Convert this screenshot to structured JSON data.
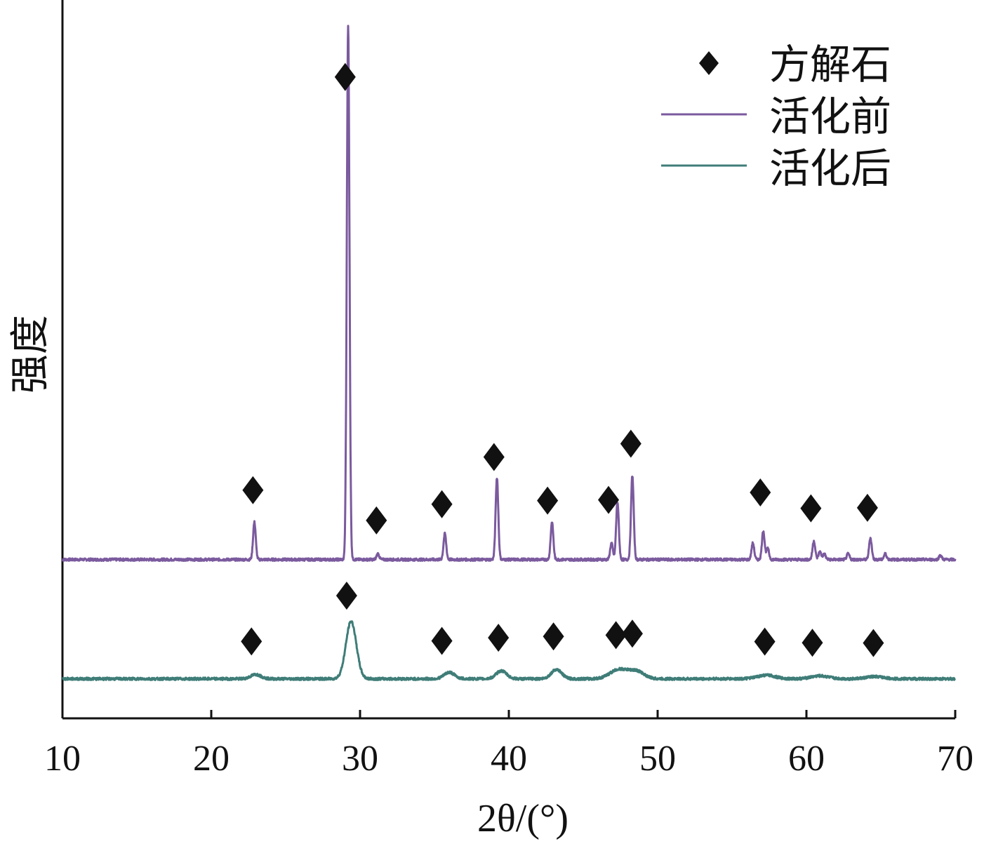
{
  "chart_data": {
    "type": "line",
    "xlabel": "2θ/(°)",
    "ylabel": "强度",
    "xlim": [
      10,
      70
    ],
    "ylim": [
      0,
      1
    ],
    "x_ticks": [
      10,
      20,
      30,
      40,
      50,
      60,
      70
    ],
    "y_ticks": [],
    "grid": false,
    "legend_position": "top-right",
    "marker_name": "方解石",
    "colors": {
      "before": "#7b5a9e",
      "after": "#3f7d78",
      "marker": "#111111"
    },
    "series": [
      {
        "name": "活化前",
        "baseline": 0.221,
        "peaks": [
          {
            "x": 22.9,
            "h": 0.052
          },
          {
            "x": 29.2,
            "h": 0.743
          },
          {
            "x": 31.2,
            "h": 0.008
          },
          {
            "x": 35.7,
            "h": 0.036
          },
          {
            "x": 39.2,
            "h": 0.114
          },
          {
            "x": 42.9,
            "h": 0.052
          },
          {
            "x": 46.9,
            "h": 0.023
          },
          {
            "x": 47.3,
            "h": 0.08
          },
          {
            "x": 48.3,
            "h": 0.117
          },
          {
            "x": 56.4,
            "h": 0.023
          },
          {
            "x": 57.1,
            "h": 0.04
          },
          {
            "x": 57.4,
            "h": 0.015
          },
          {
            "x": 60.5,
            "h": 0.026
          },
          {
            "x": 60.9,
            "h": 0.011
          },
          {
            "x": 61.2,
            "h": 0.008
          },
          {
            "x": 62.8,
            "h": 0.008
          },
          {
            "x": 64.3,
            "h": 0.03
          },
          {
            "x": 65.3,
            "h": 0.008
          },
          {
            "x": 69.0,
            "h": 0.006
          }
        ],
        "calcite_markers": [
          22.8,
          29.0,
          31.1,
          35.5,
          39.0,
          42.6,
          46.7,
          48.2,
          56.9,
          60.3,
          64.1
        ]
      },
      {
        "name": "活化后",
        "baseline": 0.055,
        "broad_peaks": [
          {
            "x": 23.0,
            "h": 0.006,
            "w": 0.35
          },
          {
            "x": 29.4,
            "h": 0.08,
            "w": 0.35
          },
          {
            "x": 36.0,
            "h": 0.009,
            "w": 0.35
          },
          {
            "x": 39.5,
            "h": 0.011,
            "w": 0.35
          },
          {
            "x": 43.2,
            "h": 0.013,
            "w": 0.35
          },
          {
            "x": 47.4,
            "h": 0.013,
            "w": 0.6
          },
          {
            "x": 48.6,
            "h": 0.01,
            "w": 0.5
          },
          {
            "x": 57.3,
            "h": 0.005,
            "w": 0.6
          },
          {
            "x": 60.9,
            "h": 0.004,
            "w": 0.6
          },
          {
            "x": 64.6,
            "h": 0.003,
            "w": 0.6
          }
        ],
        "calcite_markers": [
          22.7,
          29.1,
          35.5,
          39.3,
          43.0,
          47.2,
          48.3,
          57.2,
          60.4,
          64.5
        ]
      }
    ]
  }
}
